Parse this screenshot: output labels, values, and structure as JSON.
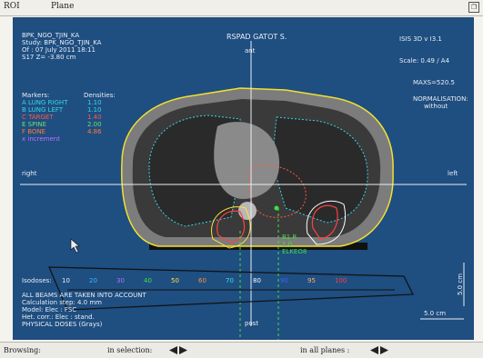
{
  "menubar": {
    "items": [
      "ROI",
      "Plane"
    ]
  },
  "viewer": {
    "patient": [
      "BPK_NGO_TJIN_KA",
      "Study: BPK_NGO_TJIN_KA",
      "Of : 07 July 2011 18:11",
      "S17  Z= -3.80 cm"
    ],
    "hospital": "RSPAD GATOT S.",
    "software": "ISIS 3D   v I3.1",
    "scale": "Scale:  0.49 / A4",
    "maxs": "MAXS=520.5",
    "normalization": [
      "NORMALISATION:",
      "without"
    ],
    "orientation": {
      "ant": "ant",
      "post": "post",
      "right": "right",
      "left": "left"
    },
    "markers": {
      "header": "Markers:",
      "density_header": "Densities:",
      "items": [
        {
          "label": "A  LUNG RIGHT",
          "value": "1.10",
          "color": "#36d6e8"
        },
        {
          "label": "B  LUNG LEFT",
          "value": "1.10",
          "color": "#36d6e8"
        },
        {
          "label": "C  TARGET",
          "value": "1.40",
          "color": "#ff5a4a"
        },
        {
          "label": "E  SPINE",
          "value": "2.00",
          "color": "#70e070"
        },
        {
          "label": "F  BONE",
          "value": "4.86",
          "color": "#ff7a3a"
        },
        {
          "label": "x  increment",
          "value": "",
          "color": "#c070ff"
        }
      ]
    },
    "beam_label": [
      "B1   R",
      "1.0",
      "ELKEO8"
    ],
    "isodoses": {
      "header": "Isodoses:",
      "items": [
        {
          "value": "10",
          "color": "#e8eef6"
        },
        {
          "value": "20",
          "color": "#38b8ff"
        },
        {
          "value": "30",
          "color": "#b070ff"
        },
        {
          "value": "40",
          "color": "#40e040"
        },
        {
          "value": "50",
          "color": "#ffe040"
        },
        {
          "value": "60",
          "color": "#ff9040"
        },
        {
          "value": "70",
          "color": "#40e0e0"
        },
        {
          "value": "80",
          "color": "#ffffff"
        },
        {
          "value": "90",
          "color": "#4060ff"
        },
        {
          "value": "95",
          "color": "#ffb070"
        },
        {
          "value": "100",
          "color": "#ff4040"
        }
      ]
    },
    "calc_info": [
      "ALL BEAMS ARE TAKEN INTO ACCOUNT",
      "Calculation step: 4.0 mm",
      "Model: Elec : FSC",
      "Het. corr.: Elec : stand.",
      "PHYSICAL DOSES (Grays)"
    ],
    "scale_bars": {
      "vertical": "5.0 cm",
      "horizontal": "5.0 cm"
    }
  },
  "status": {
    "left": "Browsing:",
    "selection": "in selection:",
    "planes": "in all planes :"
  },
  "colors": {
    "viewer_bg": "#1f4e80",
    "body_outline": "#f0e030",
    "lung": "#36d6e8",
    "target": "#ff5a4a"
  }
}
